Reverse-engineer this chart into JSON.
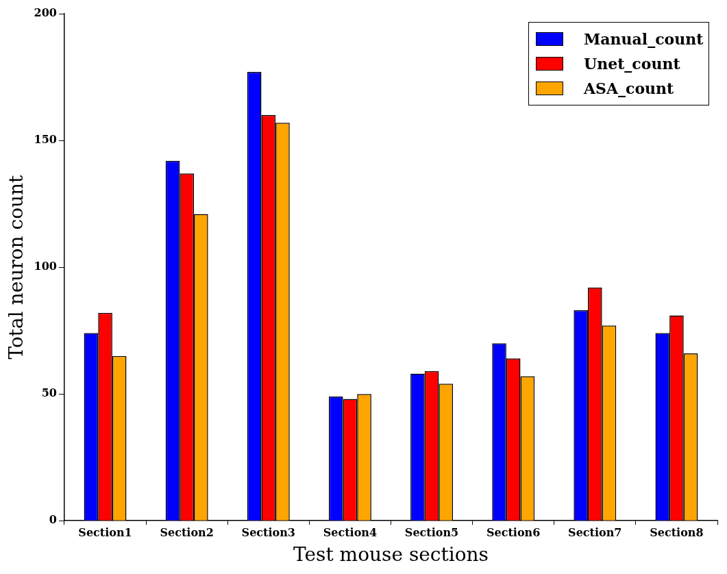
{
  "chart_data": {
    "type": "bar",
    "xlabel": "Test mouse sections",
    "ylabel": "Total neuron count",
    "categories": [
      "Section1",
      "Section2",
      "Section3",
      "Section4",
      "Section5",
      "Section6",
      "Section7",
      "Section8"
    ],
    "series": [
      {
        "name": "Manual_count",
        "color": "#0000ff",
        "values": [
          74,
          142,
          177,
          49,
          58,
          70,
          83,
          74
        ]
      },
      {
        "name": "Unet_count",
        "color": "#ff0000",
        "values": [
          82,
          137,
          160,
          48,
          59,
          64,
          92,
          81
        ]
      },
      {
        "name": "ASA_count",
        "color": "#ffa500",
        "values": [
          65,
          121,
          157,
          50,
          54,
          57,
          77,
          66
        ]
      }
    ],
    "ylim": [
      0,
      200
    ],
    "yticks": [
      0,
      50,
      100,
      150,
      200
    ],
    "grid": false,
    "legend": "top right"
  }
}
